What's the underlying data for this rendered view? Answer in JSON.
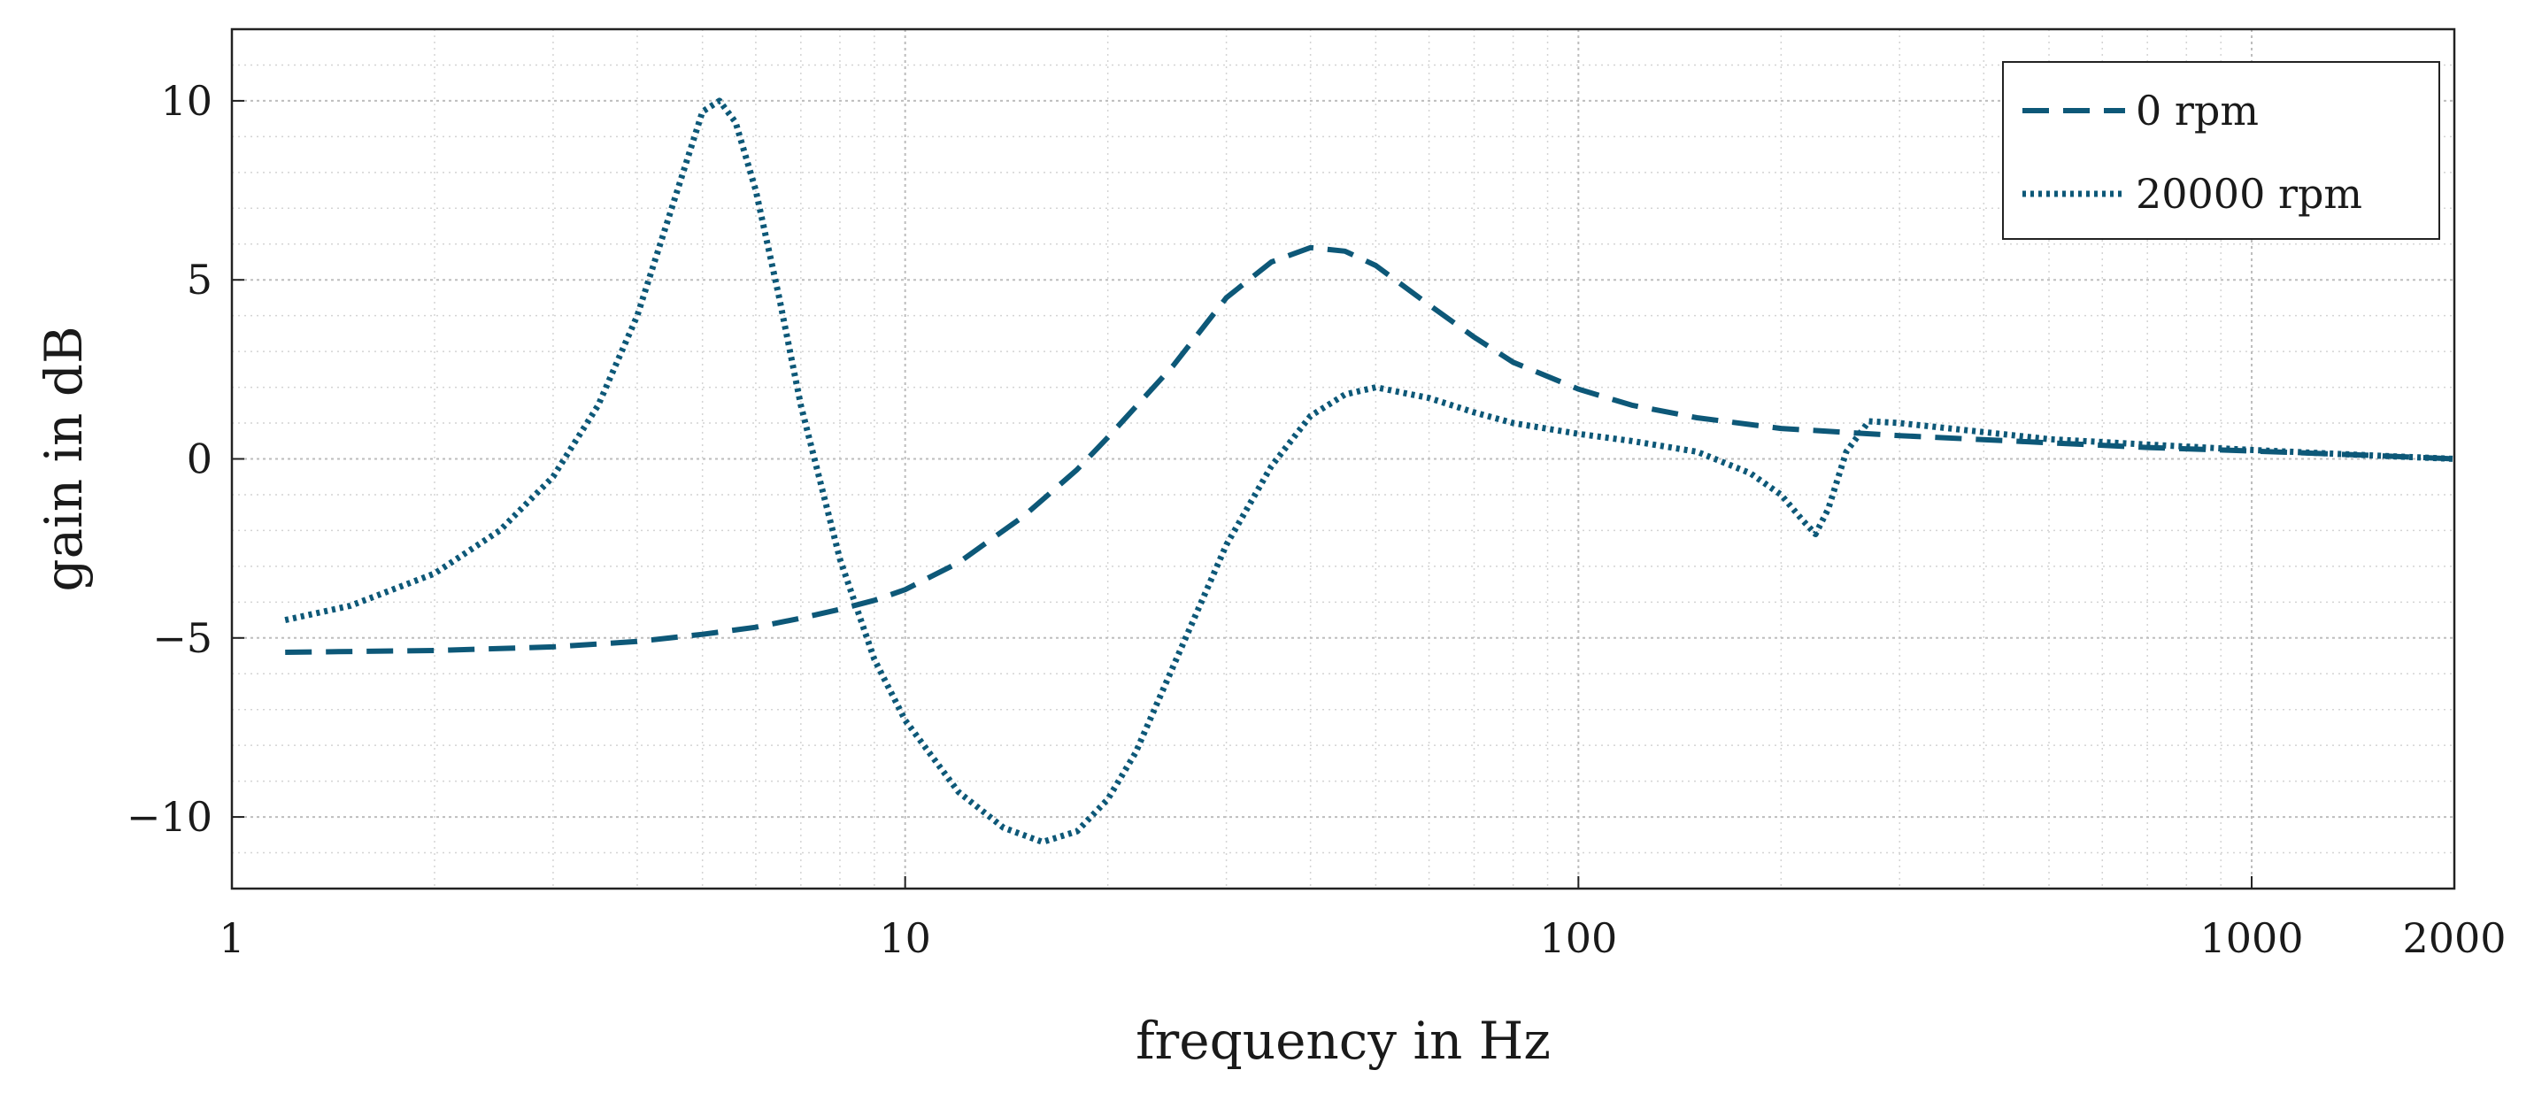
{
  "chart_data": {
    "type": "line",
    "title": "",
    "xlabel": "frequency in Hz",
    "ylabel": "gain in dB",
    "xscale": "log",
    "xlim": [
      1,
      2000
    ],
    "ylim": [
      -12,
      12
    ],
    "grid": true,
    "minor_grid": true,
    "xticks": [
      1,
      10,
      100,
      1000,
      2000
    ],
    "xtick_labels": [
      "1",
      "10",
      "100",
      "1000",
      "2000"
    ],
    "yticks": [
      -10,
      -5,
      0,
      5,
      10
    ],
    "ytick_labels": [
      "−10",
      "−5",
      "0",
      "5",
      "10"
    ],
    "legend": {
      "placement": "top-right"
    },
    "color": "#0d5878",
    "series": [
      {
        "name": "0 rpm",
        "style": "dashed",
        "x": [
          1.2,
          2,
          3,
          4,
          5,
          6,
          7,
          8,
          9,
          10,
          12,
          15,
          18,
          20,
          25,
          30,
          35,
          40,
          45,
          50,
          60,
          70,
          80,
          100,
          120,
          150,
          200,
          300,
          500,
          700,
          1000,
          1500,
          2000
        ],
        "y": [
          -5.4,
          -5.35,
          -5.25,
          -5.1,
          -4.9,
          -4.7,
          -4.45,
          -4.2,
          -3.95,
          -3.65,
          -2.9,
          -1.6,
          -0.3,
          0.6,
          2.6,
          4.5,
          5.5,
          5.9,
          5.8,
          5.4,
          4.3,
          3.4,
          2.7,
          1.95,
          1.5,
          1.15,
          0.85,
          0.65,
          0.45,
          0.32,
          0.22,
          0.1,
          0.0
        ]
      },
      {
        "name": "20000 rpm",
        "style": "dotted",
        "x": [
          1.2,
          1.5,
          2,
          2.5,
          3,
          3.5,
          4,
          4.5,
          5,
          5.3,
          5.6,
          6,
          6.5,
          7,
          8,
          9,
          10,
          12,
          14,
          16,
          18,
          20,
          22,
          25,
          30,
          35,
          40,
          45,
          50,
          60,
          70,
          80,
          100,
          120,
          150,
          180,
          200,
          215,
          225,
          235,
          250,
          270,
          300,
          400,
          500,
          700,
          1000,
          1500,
          2000
        ],
        "y": [
          -4.5,
          -4.1,
          -3.2,
          -2.0,
          -0.5,
          1.5,
          4.0,
          7.0,
          9.7,
          10.0,
          9.4,
          7.5,
          4.5,
          1.5,
          -2.8,
          -5.6,
          -7.3,
          -9.3,
          -10.3,
          -10.7,
          -10.4,
          -9.5,
          -8.2,
          -5.8,
          -2.4,
          -0.2,
          1.2,
          1.8,
          2.0,
          1.7,
          1.3,
          1.0,
          0.7,
          0.5,
          0.2,
          -0.4,
          -1.0,
          -1.7,
          -2.1,
          -1.4,
          0.2,
          1.05,
          1.0,
          0.75,
          0.55,
          0.4,
          0.25,
          0.1,
          0.0
        ]
      }
    ]
  }
}
